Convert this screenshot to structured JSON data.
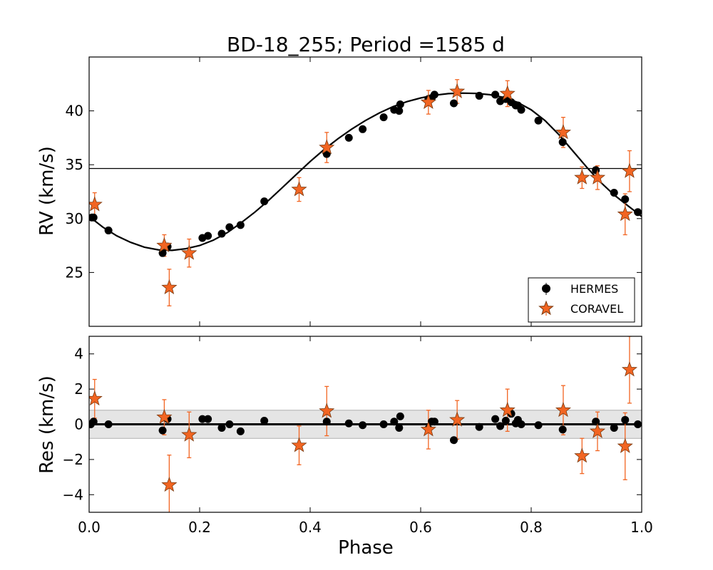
{
  "chart_data": {
    "type": "scatter",
    "title": "BD-18_255; Period =1585 d",
    "xlabel": "Phase",
    "colors": {
      "hermes": "#000000",
      "coravel": "#f26522",
      "coravel_edge": "#7a3a10",
      "band": "#e5e5e5",
      "band_edge": "#b0b0b0"
    },
    "legend": {
      "position": "lower-right",
      "entries": [
        "HERMES",
        "CORAVEL"
      ]
    },
    "x_ticks": [
      "0.0",
      "0.2",
      "0.4",
      "0.6",
      "0.8",
      "1.0"
    ],
    "xlim": [
      0.0,
      1.0
    ],
    "rv_panel": {
      "ylabel": "RV (km/s)",
      "ylim": [
        20.0,
        45.0
      ],
      "y_ticks": [
        "25",
        "30",
        "35",
        "40"
      ],
      "systemic_velocity": 34.65,
      "model_curve": [
        [
          0.0,
          30.2
        ],
        [
          0.025,
          29.2
        ],
        [
          0.05,
          28.4
        ],
        [
          0.075,
          27.8
        ],
        [
          0.1,
          27.35
        ],
        [
          0.125,
          27.1
        ],
        [
          0.15,
          27.05
        ],
        [
          0.175,
          27.2
        ],
        [
          0.2,
          27.5
        ],
        [
          0.225,
          28.0
        ],
        [
          0.25,
          28.7
        ],
        [
          0.275,
          29.6
        ],
        [
          0.3,
          30.6
        ],
        [
          0.325,
          31.7
        ],
        [
          0.35,
          32.9
        ],
        [
          0.375,
          34.1
        ],
        [
          0.4,
          35.3
        ],
        [
          0.425,
          36.4
        ],
        [
          0.45,
          37.4
        ],
        [
          0.475,
          38.3
        ],
        [
          0.5,
          39.1
        ],
        [
          0.525,
          39.8
        ],
        [
          0.55,
          40.4
        ],
        [
          0.575,
          40.85
        ],
        [
          0.6,
          41.2
        ],
        [
          0.625,
          41.45
        ],
        [
          0.65,
          41.6
        ],
        [
          0.675,
          41.65
        ],
        [
          0.7,
          41.62
        ],
        [
          0.725,
          41.5
        ],
        [
          0.75,
          41.25
        ],
        [
          0.775,
          40.8
        ],
        [
          0.8,
          40.1
        ],
        [
          0.825,
          39.1
        ],
        [
          0.85,
          37.8
        ],
        [
          0.875,
          36.3
        ],
        [
          0.9,
          34.8
        ],
        [
          0.925,
          33.4
        ],
        [
          0.95,
          32.2
        ],
        [
          0.975,
          31.2
        ],
        [
          1.0,
          30.2
        ]
      ],
      "hermes": [
        {
          "x": 0.005,
          "y": 30.1
        },
        {
          "x": 0.008,
          "y": 30.1
        },
        {
          "x": 0.035,
          "y": 28.9
        },
        {
          "x": 0.133,
          "y": 26.8
        },
        {
          "x": 0.142,
          "y": 27.4
        },
        {
          "x": 0.205,
          "y": 28.2
        },
        {
          "x": 0.215,
          "y": 28.4
        },
        {
          "x": 0.24,
          "y": 28.6
        },
        {
          "x": 0.254,
          "y": 29.2
        },
        {
          "x": 0.274,
          "y": 29.4
        },
        {
          "x": 0.317,
          "y": 31.6
        },
        {
          "x": 0.43,
          "y": 36.0
        },
        {
          "x": 0.47,
          "y": 37.5
        },
        {
          "x": 0.495,
          "y": 38.3
        },
        {
          "x": 0.533,
          "y": 39.4
        },
        {
          "x": 0.552,
          "y": 40.1
        },
        {
          "x": 0.561,
          "y": 40.0
        },
        {
          "x": 0.563,
          "y": 40.6
        },
        {
          "x": 0.614,
          "y": 41.1
        },
        {
          "x": 0.62,
          "y": 41.2
        },
        {
          "x": 0.625,
          "y": 41.5
        },
        {
          "x": 0.66,
          "y": 40.7
        },
        {
          "x": 0.706,
          "y": 41.4
        },
        {
          "x": 0.735,
          "y": 41.5
        },
        {
          "x": 0.744,
          "y": 40.9
        },
        {
          "x": 0.754,
          "y": 41.1
        },
        {
          "x": 0.764,
          "y": 40.8
        },
        {
          "x": 0.772,
          "y": 40.5
        },
        {
          "x": 0.776,
          "y": 40.5
        },
        {
          "x": 0.782,
          "y": 40.1
        },
        {
          "x": 0.813,
          "y": 39.1
        },
        {
          "x": 0.857,
          "y": 37.1
        },
        {
          "x": 0.917,
          "y": 34.5
        },
        {
          "x": 0.95,
          "y": 32.4
        },
        {
          "x": 0.97,
          "y": 31.8
        },
        {
          "x": 0.993,
          "y": 30.6
        }
      ],
      "coravel": [
        {
          "x": 0.01,
          "y": 31.3,
          "err": 1.1
        },
        {
          "x": 0.136,
          "y": 27.5,
          "err": 1.0
        },
        {
          "x": 0.145,
          "y": 23.6,
          "err": 1.7
        },
        {
          "x": 0.181,
          "y": 26.8,
          "err": 1.3
        },
        {
          "x": 0.38,
          "y": 32.7,
          "err": 1.1
        },
        {
          "x": 0.43,
          "y": 36.6,
          "err": 1.4
        },
        {
          "x": 0.614,
          "y": 40.8,
          "err": 1.1
        },
        {
          "x": 0.666,
          "y": 41.8,
          "err": 1.1
        },
        {
          "x": 0.757,
          "y": 41.6,
          "err": 1.2
        },
        {
          "x": 0.858,
          "y": 38.0,
          "err": 1.4
        },
        {
          "x": 0.892,
          "y": 33.8,
          "err": 1.0
        },
        {
          "x": 0.92,
          "y": 33.8,
          "err": 1.1
        },
        {
          "x": 0.97,
          "y": 30.4,
          "err": 1.9
        },
        {
          "x": 0.978,
          "y": 34.4,
          "err": 1.9
        }
      ]
    },
    "res_panel": {
      "ylabel": "Res (km/s)",
      "ylim": [
        -5.0,
        5.0
      ],
      "y_ticks": [
        "−4",
        "−2",
        "0",
        "2",
        "4"
      ],
      "y_tick_values": [
        -4,
        -2,
        0,
        2,
        4
      ],
      "band": [
        -0.8,
        0.8
      ],
      "hermes": [
        {
          "x": 0.003,
          "y": 0.0
        },
        {
          "x": 0.008,
          "y": 0.15
        },
        {
          "x": 0.035,
          "y": 0.0
        },
        {
          "x": 0.133,
          "y": -0.35
        },
        {
          "x": 0.142,
          "y": 0.3
        },
        {
          "x": 0.205,
          "y": 0.3
        },
        {
          "x": 0.215,
          "y": 0.3
        },
        {
          "x": 0.24,
          "y": -0.2
        },
        {
          "x": 0.254,
          "y": 0.0
        },
        {
          "x": 0.274,
          "y": -0.4
        },
        {
          "x": 0.317,
          "y": 0.2
        },
        {
          "x": 0.43,
          "y": 0.15
        },
        {
          "x": 0.47,
          "y": 0.05
        },
        {
          "x": 0.495,
          "y": -0.05
        },
        {
          "x": 0.533,
          "y": 0.0
        },
        {
          "x": 0.552,
          "y": 0.15
        },
        {
          "x": 0.561,
          "y": -0.2
        },
        {
          "x": 0.563,
          "y": 0.45
        },
        {
          "x": 0.614,
          "y": -0.25
        },
        {
          "x": 0.62,
          "y": 0.15
        },
        {
          "x": 0.625,
          "y": 0.15
        },
        {
          "x": 0.66,
          "y": -0.9
        },
        {
          "x": 0.706,
          "y": -0.15
        },
        {
          "x": 0.735,
          "y": 0.3
        },
        {
          "x": 0.744,
          "y": -0.1
        },
        {
          "x": 0.754,
          "y": 0.2
        },
        {
          "x": 0.764,
          "y": 0.6
        },
        {
          "x": 0.772,
          "y": 0.05
        },
        {
          "x": 0.776,
          "y": 0.25
        },
        {
          "x": 0.782,
          "y": 0.0
        },
        {
          "x": 0.813,
          "y": -0.05
        },
        {
          "x": 0.857,
          "y": -0.3
        },
        {
          "x": 0.917,
          "y": 0.15
        },
        {
          "x": 0.95,
          "y": -0.2
        },
        {
          "x": 0.97,
          "y": 0.25
        },
        {
          "x": 0.993,
          "y": 0.0
        }
      ],
      "coravel": [
        {
          "x": 0.01,
          "y": 1.45,
          "err": 1.1
        },
        {
          "x": 0.136,
          "y": 0.4,
          "err": 1.0
        },
        {
          "x": 0.145,
          "y": -3.45,
          "err": 1.7
        },
        {
          "x": 0.181,
          "y": -0.6,
          "err": 1.3
        },
        {
          "x": 0.38,
          "y": -1.2,
          "err": 1.1
        },
        {
          "x": 0.43,
          "y": 0.75,
          "err": 1.4
        },
        {
          "x": 0.614,
          "y": -0.3,
          "err": 1.1
        },
        {
          "x": 0.666,
          "y": 0.25,
          "err": 1.1
        },
        {
          "x": 0.757,
          "y": 0.8,
          "err": 1.2
        },
        {
          "x": 0.858,
          "y": 0.8,
          "err": 1.4
        },
        {
          "x": 0.892,
          "y": -1.8,
          "err": 1.0
        },
        {
          "x": 0.92,
          "y": -0.4,
          "err": 1.1
        },
        {
          "x": 0.97,
          "y": -1.25,
          "err": 1.9
        },
        {
          "x": 0.978,
          "y": 3.1,
          "err": 1.9
        }
      ]
    }
  }
}
